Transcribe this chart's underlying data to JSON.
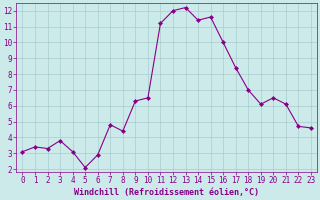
{
  "x": [
    0,
    1,
    2,
    3,
    4,
    5,
    6,
    7,
    8,
    9,
    10,
    11,
    12,
    13,
    14,
    15,
    16,
    17,
    18,
    19,
    20,
    21,
    22,
    23
  ],
  "y": [
    3.1,
    3.4,
    3.3,
    3.8,
    3.1,
    2.1,
    2.9,
    4.8,
    4.4,
    6.3,
    6.5,
    11.2,
    12.0,
    12.2,
    11.4,
    11.6,
    10.0,
    8.4,
    7.0,
    6.1,
    6.5,
    6.1,
    4.7,
    4.6
  ],
  "line_color": "#880088",
  "marker": "D",
  "marker_size": 2,
  "bg_color": "#cceaea",
  "grid_color": "#aacccc",
  "xlabel": "Windchill (Refroidissement éolien,°C)",
  "xlabel_color": "#880088",
  "tick_color": "#880088",
  "ylim": [
    1.8,
    12.5
  ],
  "xlim": [
    -0.5,
    23.5
  ],
  "yticks": [
    2,
    3,
    4,
    5,
    6,
    7,
    8,
    9,
    10,
    11,
    12
  ],
  "xticks": [
    0,
    1,
    2,
    3,
    4,
    5,
    6,
    7,
    8,
    9,
    10,
    11,
    12,
    13,
    14,
    15,
    16,
    17,
    18,
    19,
    20,
    21,
    22,
    23
  ],
  "tick_fontsize": 5.5,
  "xlabel_fontsize": 6.0,
  "linewidth": 0.8
}
